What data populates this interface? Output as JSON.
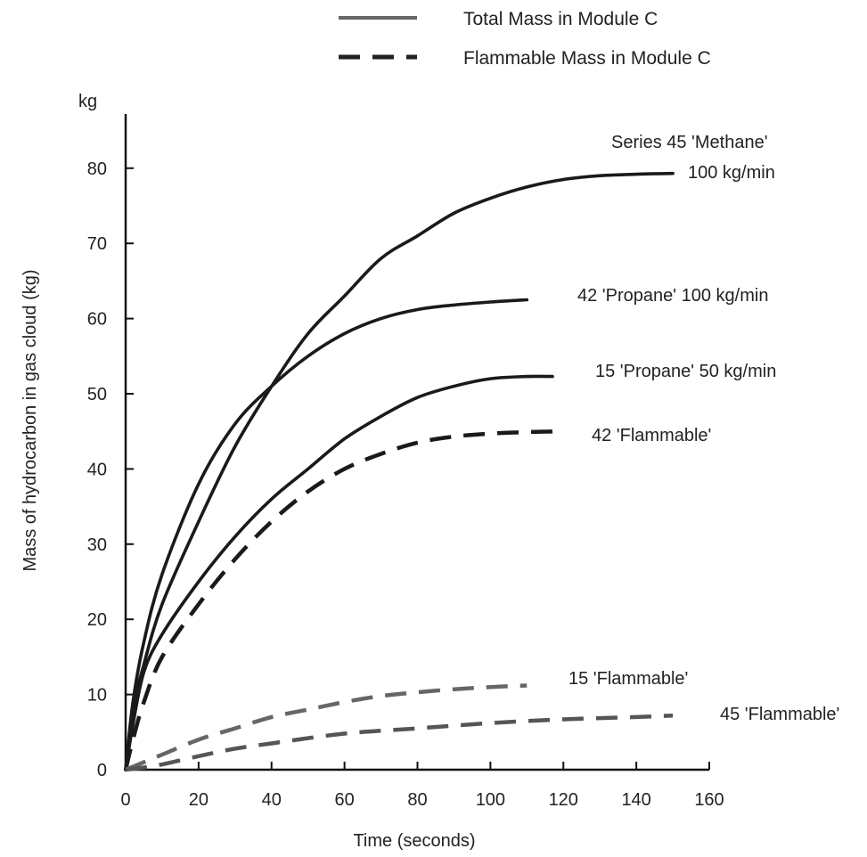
{
  "chart_data": {
    "type": "line",
    "title": "",
    "xlabel": "Time (seconds)",
    "ylabel": "Mass of hydrocarbon in gas cloud (kg)",
    "y_unit": "kg",
    "xlim": [
      0,
      160
    ],
    "ylim": [
      0,
      85
    ],
    "x_ticks": [
      0,
      20,
      40,
      60,
      80,
      100,
      120,
      140,
      160
    ],
    "y_ticks": [
      0,
      10,
      20,
      30,
      40,
      50,
      60,
      70,
      80
    ],
    "grid": false,
    "legend_position": "top-center",
    "legend": [
      {
        "label": "Total Mass in Module C",
        "style": "solid"
      },
      {
        "label": "Flammable Mass in Module C",
        "style": "dashed"
      }
    ],
    "series": [
      {
        "label_lines": [
          "Series  45 'Methane'",
          "100 kg/min"
        ],
        "style": "solid",
        "color": "#1a1a1a",
        "x": [
          0,
          2,
          5,
          10,
          20,
          30,
          40,
          50,
          60,
          70,
          80,
          90,
          100,
          110,
          120,
          130,
          140,
          150
        ],
        "y": [
          0,
          8,
          14,
          22,
          33,
          43,
          51,
          58,
          63,
          68,
          71,
          74,
          76,
          77.5,
          78.5,
          79,
          79.2,
          79.3
        ]
      },
      {
        "label_lines": [
          "42 'Propane' 100 kg/min"
        ],
        "style": "solid",
        "color": "#1a1a1a",
        "x": [
          0,
          2,
          5,
          10,
          20,
          30,
          40,
          50,
          60,
          70,
          80,
          90,
          100,
          110
        ],
        "y": [
          0,
          9,
          17,
          26,
          38,
          46,
          51,
          55,
          58,
          60,
          61.2,
          61.8,
          62.2,
          62.5
        ]
      },
      {
        "label_lines": [
          "15 'Propane' 50 kg/min"
        ],
        "style": "solid",
        "color": "#1a1a1a",
        "x": [
          0,
          2,
          5,
          10,
          20,
          30,
          40,
          50,
          60,
          70,
          80,
          90,
          100,
          110,
          117
        ],
        "y": [
          0,
          6,
          13,
          18,
          25,
          31,
          36,
          40,
          44,
          47,
          49.5,
          51,
          52,
          52.3,
          52.3
        ]
      },
      {
        "label_lines": [
          "42 'Flammable'"
        ],
        "style": "dashed",
        "color": "#1a1a1a",
        "x": [
          0,
          2,
          5,
          10,
          20,
          30,
          40,
          50,
          60,
          70,
          80,
          90,
          100,
          110,
          120
        ],
        "y": [
          0,
          4,
          9,
          15,
          22,
          28,
          33,
          37,
          40,
          42,
          43.5,
          44.3,
          44.7,
          44.9,
          45
        ]
      },
      {
        "label_lines": [
          "15 'Flammable'"
        ],
        "style": "dashed",
        "color": "#666666",
        "x": [
          0,
          5,
          10,
          20,
          30,
          40,
          50,
          60,
          70,
          80,
          90,
          100,
          110
        ],
        "y": [
          0,
          1,
          2,
          4,
          5.5,
          7,
          8,
          9,
          9.8,
          10.3,
          10.7,
          11,
          11.2
        ]
      },
      {
        "label_lines": [
          "45 'Flammable'"
        ],
        "style": "dashed",
        "color": "#555555",
        "x": [
          0,
          5,
          10,
          20,
          30,
          40,
          60,
          80,
          100,
          120,
          140,
          150
        ],
        "y": [
          0,
          0.3,
          0.7,
          1.8,
          2.8,
          3.5,
          4.8,
          5.5,
          6.2,
          6.7,
          7,
          7.2
        ]
      }
    ]
  }
}
